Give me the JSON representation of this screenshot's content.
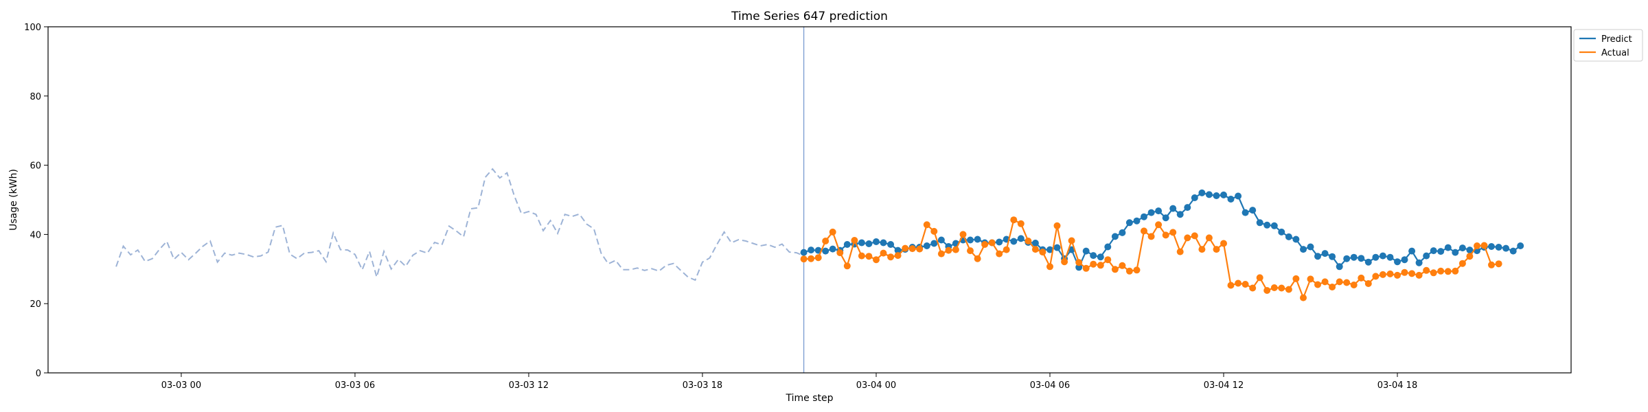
{
  "chart_data": {
    "type": "line",
    "title": "Time Series 647 prediction",
    "xlabel": "Time step",
    "ylabel": "Usage (kWh)",
    "ylim": [
      0,
      100
    ],
    "yticks": [
      0,
      20,
      40,
      60,
      80,
      100
    ],
    "xlim_hours": [
      -4.6,
      48.0
    ],
    "xticks": [
      {
        "label": "03-03 00",
        "hour": 0
      },
      {
        "label": "03-03 06",
        "hour": 6
      },
      {
        "label": "03-03 12",
        "hour": 12
      },
      {
        "label": "03-03 18",
        "hour": 18
      },
      {
        "label": "03-04 00",
        "hour": 24
      },
      {
        "label": "03-04 06",
        "hour": 30
      },
      {
        "label": "03-04 12",
        "hour": 36
      },
      {
        "label": "03-04 18",
        "hour": 42
      }
    ],
    "split_hour": 21.5,
    "history": {
      "start_hour": -2.25,
      "step_hours": 0.25,
      "style": "dashed",
      "color": "#9db3d6",
      "values": [
        30.7,
        36.6,
        34.1,
        35.5,
        32.2,
        33.0,
        35.7,
        38.0,
        32.8,
        34.8,
        32.7,
        34.6,
        36.6,
        38.1,
        32.0,
        34.6,
        34.0,
        34.6,
        34.2,
        33.5,
        33.8,
        34.9,
        42.1,
        42.6,
        34.3,
        33.0,
        34.6,
        34.8,
        35.3,
        32.1,
        40.4,
        35.6,
        35.5,
        34.2,
        29.8,
        35.1,
        27.7,
        35.1,
        30.0,
        32.8,
        30.8,
        34.0,
        35.3,
        34.6,
        37.7,
        37.0,
        42.4,
        41.0,
        39.3,
        47.4,
        47.7,
        56.5,
        58.9,
        56.3,
        57.8,
        51.2,
        46.0,
        46.6,
        45.8,
        41.1,
        44.0,
        40.3,
        45.8,
        45.2,
        45.9,
        43.0,
        41.6,
        34.6,
        31.5,
        32.5,
        29.8,
        29.8,
        30.3,
        29.6,
        30.1,
        29.4,
        31.1,
        31.6,
        29.6,
        27.7,
        26.8,
        32.0,
        33.2,
        37.1,
        40.7,
        37.6,
        38.5,
        38.1,
        37.4,
        36.7,
        37.1,
        36.3,
        37.2,
        34.9,
        34.7,
        33.8
      ]
    },
    "series": [
      {
        "name": "Predict",
        "color": "#1f77b4",
        "start_hour": 21.5,
        "step_hours": 0.25,
        "values": [
          34.8,
          35.5,
          35.4,
          35.2,
          35.8,
          35.4,
          37.1,
          37.2,
          37.6,
          37.3,
          37.9,
          37.6,
          37.1,
          35.4,
          35.7,
          36.3,
          36.3,
          36.7,
          37.4,
          38.4,
          36.5,
          37.4,
          38.4,
          38.4,
          38.6,
          37.6,
          37.6,
          37.8,
          38.6,
          38.0,
          38.8,
          37.7,
          37.5,
          35.6,
          35.6,
          36.2,
          33.0,
          35.6,
          30.5,
          35.2,
          33.9,
          33.5,
          36.4,
          39.4,
          40.5,
          43.4,
          43.9,
          45.1,
          46.3,
          46.8,
          44.8,
          47.5,
          45.8,
          47.8,
          50.6,
          52.0,
          51.5,
          51.2,
          51.4,
          50.2,
          51.1,
          46.3,
          47.0,
          43.4,
          42.7,
          42.5,
          40.7,
          39.3,
          38.6,
          35.7,
          36.4,
          33.7,
          34.5,
          33.6,
          30.7,
          33.0,
          33.4,
          33.1,
          32.0,
          33.4,
          33.8,
          33.4,
          32.1,
          32.7,
          35.2,
          31.8,
          33.8,
          35.3,
          35.1,
          36.2,
          34.8,
          36.1,
          35.5,
          35.3,
          36.3,
          36.5,
          36.3,
          36.0,
          35.2,
          36.7
        ]
      },
      {
        "name": "Actual",
        "color": "#ff7f0e",
        "start_hour": 21.5,
        "step_hours": 0.25,
        "values": [
          32.9,
          33.0,
          33.3,
          38.1,
          40.7,
          34.7,
          30.9,
          38.3,
          33.8,
          33.7,
          32.7,
          34.6,
          33.5,
          33.9,
          36.0,
          35.9,
          35.8,
          42.8,
          40.9,
          34.4,
          35.4,
          35.6,
          40.0,
          35.3,
          33.0,
          37.1,
          37.6,
          34.4,
          35.6,
          44.2,
          43.1,
          38.1,
          35.7,
          34.9,
          30.7,
          42.5,
          32.1,
          38.2,
          31.9,
          30.2,
          31.4,
          31.1,
          32.7,
          29.9,
          31.0,
          29.4,
          29.7,
          41.0,
          39.4,
          42.8,
          39.8,
          40.6,
          35.0,
          39.0,
          39.6,
          35.7,
          39.0,
          35.7,
          37.4,
          25.3,
          25.9,
          25.6,
          24.5,
          27.5,
          23.8,
          24.6,
          24.5,
          24.1,
          27.2,
          21.7,
          27.1,
          25.5,
          26.3,
          24.8,
          26.3,
          26.1,
          25.4,
          27.4,
          25.8,
          27.9,
          28.4,
          28.6,
          28.2,
          29.0,
          28.7,
          28.2,
          29.6,
          28.9,
          29.4,
          29.3,
          29.4,
          31.6,
          33.7,
          36.7,
          36.8,
          31.2,
          31.5
        ]
      }
    ],
    "legend": "top-right",
    "grid": false
  }
}
